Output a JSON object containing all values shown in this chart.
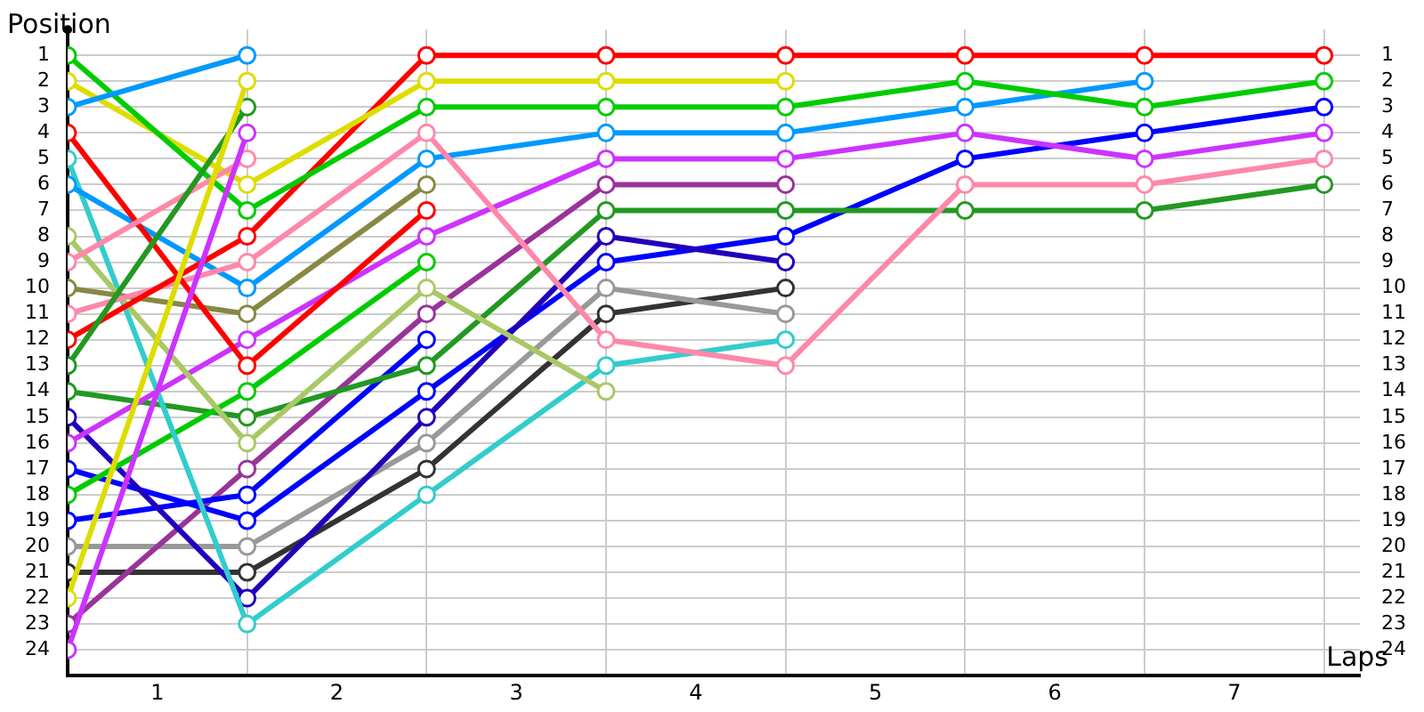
{
  "chart_data": {
    "type": "line",
    "xlabel": "Laps",
    "ylabel": "Position",
    "x": [
      0,
      1,
      2,
      3,
      4,
      5,
      6,
      7
    ],
    "xlim": [
      0,
      7.2
    ],
    "xticks": [
      {
        "value": 0.5,
        "label": "1"
      },
      {
        "value": 1,
        "label": null
      },
      {
        "value": 1.5,
        "label": "2"
      },
      {
        "value": 2,
        "label": null
      },
      {
        "value": 2.5,
        "label": "3"
      },
      {
        "value": 3,
        "label": null
      },
      {
        "value": 3.5,
        "label": "4"
      },
      {
        "value": 4,
        "label": null
      },
      {
        "value": 4.5,
        "label": "5"
      },
      {
        "value": 5,
        "label": null
      },
      {
        "value": 5.5,
        "label": "6"
      },
      {
        "value": 6,
        "label": null
      },
      {
        "value": 6.5,
        "label": "7"
      },
      {
        "value": 7,
        "label": null
      }
    ],
    "ylim": [
      25,
      0
    ],
    "yticks": [
      1,
      2,
      3,
      4,
      5,
      6,
      7,
      8,
      9,
      10,
      11,
      12,
      13,
      14,
      15,
      16,
      17,
      18,
      19,
      20,
      21,
      22,
      23,
      24
    ],
    "y2lim": [
      25,
      0
    ],
    "y2ticks": [
      1,
      2,
      3,
      4,
      5,
      6,
      7,
      8,
      9,
      10,
      11,
      12,
      13,
      14,
      15,
      16,
      17,
      18,
      19,
      20,
      21,
      22,
      23,
      24
    ],
    "grid": true,
    "legend": false,
    "marker": "circle",
    "line_style": "solid",
    "series": [
      {
        "color": "#0099ff",
        "values": [
          3,
          1,
          null,
          null,
          null,
          null,
          null,
          null
        ]
      },
      {
        "color": "#dddd00",
        "values": [
          22,
          2,
          null,
          null,
          null,
          null,
          null,
          null
        ]
      },
      {
        "color": "#229922",
        "values": [
          13,
          3,
          null,
          null,
          null,
          null,
          null,
          null
        ]
      },
      {
        "color": "#cc33ff",
        "values": [
          24,
          4,
          null,
          null,
          null,
          null,
          null,
          null
        ]
      },
      {
        "color": "#ff88aa",
        "values": [
          9,
          5,
          null,
          null,
          null,
          null,
          null,
          null
        ]
      },
      {
        "color": "#00cc00",
        "values": [
          1,
          7,
          3,
          3,
          3,
          2,
          3,
          2
        ]
      },
      {
        "color": "#dddd00",
        "values": [
          2,
          6,
          2,
          2,
          2,
          null,
          null,
          null
        ]
      },
      {
        "color": "#ff0000",
        "values": [
          4,
          13,
          7,
          null,
          null,
          null,
          null,
          null
        ]
      },
      {
        "color": "#ff0000",
        "values": [
          12,
          8,
          1,
          1,
          1,
          1,
          1,
          1
        ]
      },
      {
        "color": "#ff88aa",
        "values": [
          11,
          9,
          4,
          12,
          13,
          6,
          6,
          5
        ]
      },
      {
        "color": "#0099ff",
        "values": [
          6,
          10,
          5,
          4,
          4,
          3,
          2,
          null
        ]
      },
      {
        "color": "#888844",
        "values": [
          10,
          11,
          6,
          null,
          null,
          null,
          null,
          null
        ]
      },
      {
        "color": "#aac866",
        "values": [
          8,
          16,
          10,
          14,
          null,
          null,
          null,
          null
        ]
      },
      {
        "color": "#33cccc",
        "values": [
          5,
          23,
          18,
          13,
          12,
          null,
          null,
          null
        ]
      },
      {
        "color": "#cc33ff",
        "values": [
          16,
          12,
          8,
          5,
          5,
          4,
          5,
          4
        ]
      },
      {
        "color": "#00cc00",
        "values": [
          18,
          14,
          9,
          null,
          null,
          null,
          null,
          null
        ]
      },
      {
        "color": "#229922",
        "values": [
          14,
          15,
          13,
          7,
          7,
          7,
          7,
          6
        ]
      },
      {
        "color": "#2200bb",
        "values": [
          15,
          22,
          15,
          8,
          9,
          null,
          null,
          null
        ]
      },
      {
        "color": "#0000ff",
        "values": [
          17,
          19,
          14,
          9,
          8,
          5,
          4,
          3
        ]
      },
      {
        "color": "#0000ff",
        "values": [
          19,
          18,
          12,
          null,
          null,
          null,
          null,
          null
        ]
      },
      {
        "color": "#993399",
        "values": [
          23,
          17,
          11,
          6,
          6,
          null,
          null,
          null
        ]
      },
      {
        "color": "#999999",
        "values": [
          20,
          20,
          16,
          10,
          11,
          null,
          null,
          null
        ]
      },
      {
        "color": "#333333",
        "values": [
          21,
          21,
          17,
          11,
          10,
          null,
          null,
          null
        ]
      }
    ]
  }
}
